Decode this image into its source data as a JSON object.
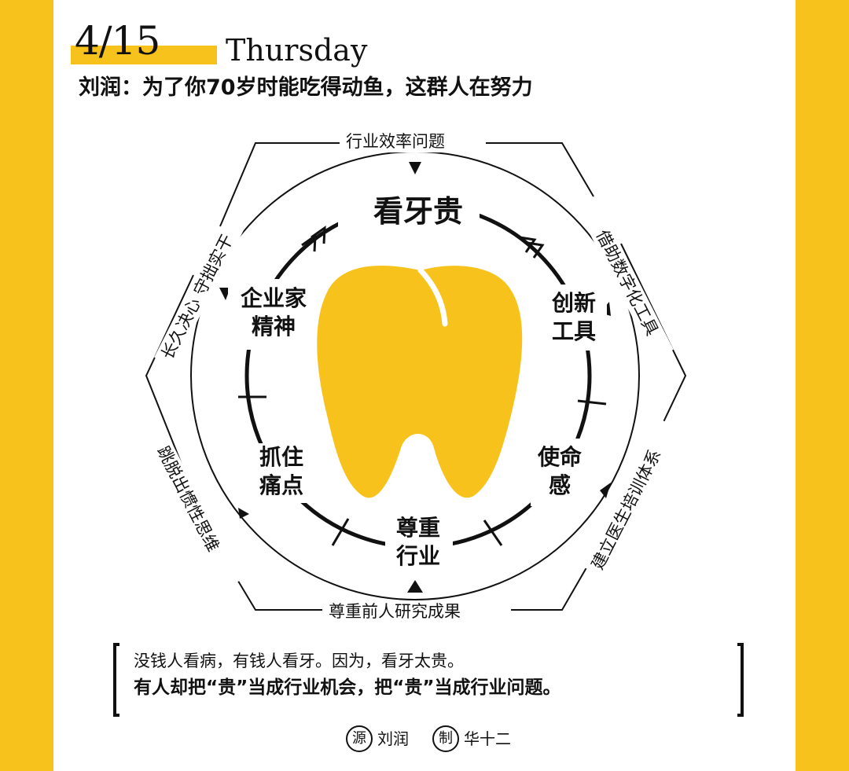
{
  "header": {
    "date": "4/15",
    "weekday": "Thursday",
    "headline": "刘润：为了你70岁时能吃得动鱼，这群人在努力"
  },
  "diagram": {
    "center": "看牙贵",
    "inner_nodes": {
      "top_right": "创新工具",
      "right": "使命感",
      "bottom": "尊重行业",
      "left": "抓住痛点",
      "top_left": "企业家精神"
    },
    "inner_nodes_lines": {
      "top_right": [
        "创新",
        "工具"
      ],
      "right": [
        "使命",
        "感"
      ],
      "bottom": [
        "尊重",
        "行业"
      ],
      "left": [
        "抓住",
        "痛点"
      ],
      "top_left": [
        "企业家",
        "精神"
      ]
    },
    "outer_labels": {
      "top": "行业效率问题",
      "top_right": "借助数字化工具",
      "bottom_right": "建立医生培训体系",
      "bottom": "尊重前人研究成果",
      "bottom_left": "跳脱出惯性思维",
      "top_left": "长久决心 守拙实干"
    }
  },
  "quote": {
    "line1": "没钱人看病，有钱人看牙。因为，看牙太贵。",
    "line2": "有人却把“贵”当成行业机会，把“贵”当成行业问题。"
  },
  "credits": {
    "source_mark": "源",
    "source": "刘润",
    "maker_mark": "制",
    "maker": "华十二"
  },
  "colors": {
    "accent": "#f8c21c",
    "ink": "#111111"
  }
}
